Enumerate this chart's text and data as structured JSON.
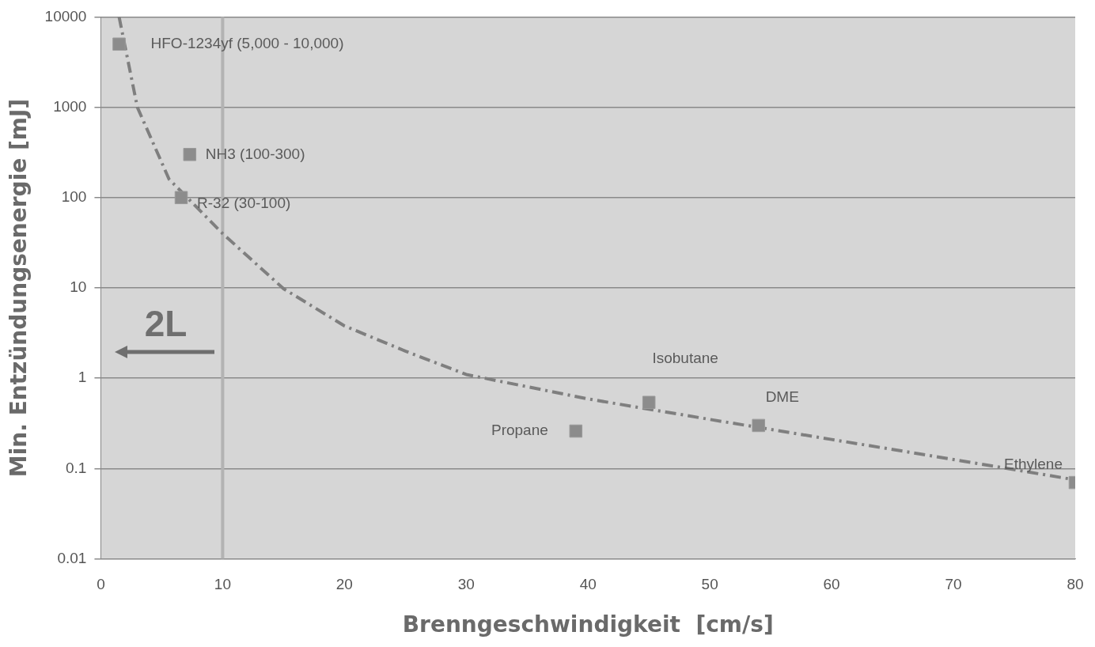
{
  "chart_data": {
    "type": "scatter",
    "xlabel": "Brenngeschwindigkeit  [cm/s]",
    "ylabel": "Min. Entzündungsenergie [mJ]",
    "xlim": [
      0,
      80
    ],
    "xticks": [
      0,
      10,
      20,
      30,
      40,
      50,
      60,
      70,
      80
    ],
    "ylim": [
      0.01,
      10000
    ],
    "yticks": [
      0.01,
      0.1,
      1,
      10,
      100,
      1000,
      10000
    ],
    "log": "y",
    "grid": "y",
    "legend": false,
    "series": [
      {
        "type": "line",
        "color": "#7f7f7f",
        "line_style": "dashed",
        "marker": "none",
        "x": [
          1.5,
          3,
          5.6,
          10,
          15,
          20,
          25,
          30,
          40,
          50,
          60,
          70,
          80
        ],
        "values": [
          10000,
          1000,
          160,
          40,
          9.8,
          3.8,
          2,
          1.1,
          0.59,
          0.35,
          0.21,
          0.126,
          0.075
        ]
      },
      {
        "type": "scatter",
        "color": "#8c8c8c",
        "marker": "square",
        "x": [
          1.5,
          7.3,
          6.6,
          39,
          45,
          54,
          80
        ],
        "values": [
          5000,
          300,
          100,
          0.26,
          0.54,
          0.3,
          0.07
        ]
      }
    ],
    "ref_lines": [
      {
        "axis": "x",
        "value": 10,
        "color": "#b3b3b3",
        "line_style": "solid"
      }
    ],
    "annotations": [
      {
        "text": "HFO-1234yf (5,000 - 10,000)",
        "x": 1.5,
        "y": 5000
      },
      {
        "text": "NH3 (100-300)",
        "x": 7.3,
        "y": 300
      },
      {
        "text": "R-32 (30-100)",
        "x": 6.6,
        "y": 100
      },
      {
        "text": "Propane",
        "x": 39,
        "y": 0.26
      },
      {
        "text": "Isobutane",
        "x": 45,
        "y": 0.54
      },
      {
        "text": "DME",
        "x": 54,
        "y": 0.3
      },
      {
        "text": "Ethylene",
        "x": 80,
        "y": 0.07
      },
      "2L"
    ]
  }
}
